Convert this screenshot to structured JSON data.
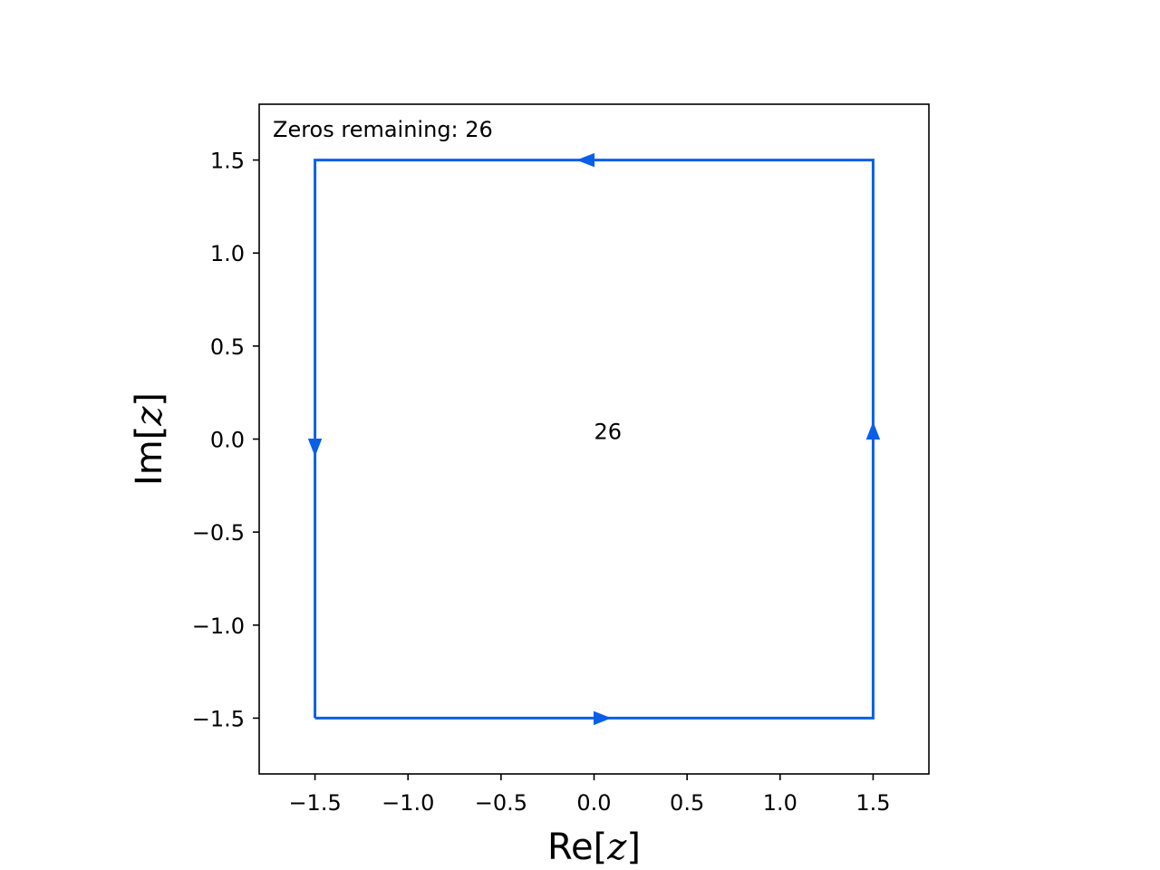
{
  "chart_data": {
    "type": "line",
    "xlabel": {
      "prefix": "Re[",
      "math": "z",
      "suffix": "]"
    },
    "ylabel": {
      "prefix": "Im[",
      "math": "z",
      "suffix": "]"
    },
    "xlim": [
      -1.8,
      1.8
    ],
    "ylim": [
      -1.8,
      1.8
    ],
    "x_ticks": [
      -1.5,
      -1.0,
      -0.5,
      0.0,
      0.5,
      1.0,
      1.5
    ],
    "x_tick_labels": [
      "−1.5",
      "−1.0",
      "−0.5",
      "0.0",
      "0.5",
      "1.0",
      "1.5"
    ],
    "y_ticks": [
      1.5,
      1.0,
      0.5,
      0.0,
      -0.5,
      -1.0,
      -1.5
    ],
    "y_tick_labels": [
      "1.5",
      "1.0",
      "0.5",
      "0.0",
      "−0.5",
      "−1.0",
      "−1.5"
    ],
    "grid": false,
    "series": [
      {
        "color": "#0a5fe8",
        "points": [
          [
            -1.5,
            -1.5
          ],
          [
            1.5,
            -1.5
          ],
          [
            1.5,
            1.5
          ],
          [
            -1.5,
            1.5
          ],
          [
            -1.5,
            -1.5
          ]
        ],
        "direction_arrows": [
          {
            "edge": "bottom",
            "x": 0.0,
            "y": -1.5,
            "direction": "right"
          },
          {
            "edge": "right",
            "x": 1.5,
            "y": 0.0,
            "direction": "up"
          },
          {
            "edge": "top",
            "x": 0.0,
            "y": 1.5,
            "direction": "left"
          },
          {
            "edge": "left",
            "x": -1.5,
            "y": 0.0,
            "direction": "down"
          }
        ]
      }
    ],
    "annotations": [
      {
        "text": "Zeros remaining: 26",
        "position": "top-left"
      },
      {
        "text": "26",
        "x": 0.0,
        "y": 0.0
      }
    ]
  }
}
